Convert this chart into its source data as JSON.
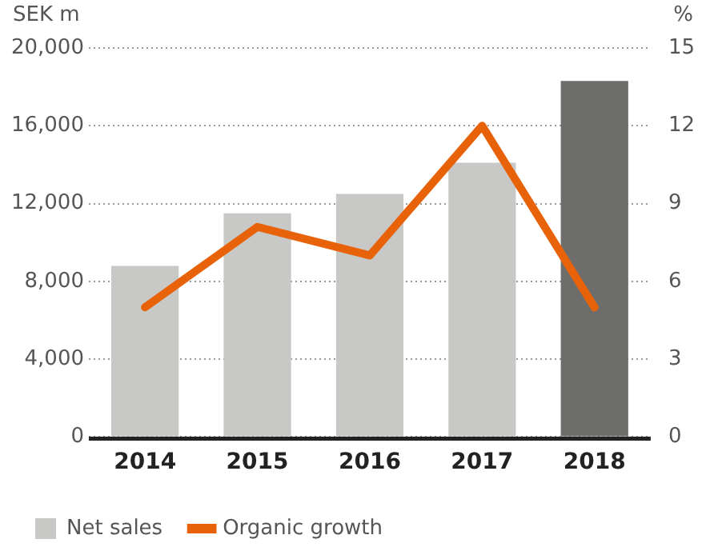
{
  "chart_data": {
    "type": "bar",
    "categories": [
      "2014",
      "2015",
      "2016",
      "2017",
      "2018"
    ],
    "ylabel": "SEK m",
    "y2label": "%",
    "series": [
      {
        "name": "Net sales",
        "color": "#c8c8c7",
        "colors": [
          "#c8c8c7",
          "#c8c8c7",
          "#c8c8c7",
          "#c8c8c7",
          "#6d6d6b"
        ],
        "values": [
          8800,
          11500,
          12500,
          14100,
          18300
        ]
      },
      {
        "name": "Organic growth",
        "type": "line",
        "axis": "y2",
        "color": "#e8620a",
        "values": [
          5.0,
          8.1,
          7.0,
          12.0,
          5.0
        ]
      }
    ],
    "ylim": [
      0,
      20000
    ],
    "yticks": [
      {
        "value": 0,
        "label": "0"
      },
      {
        "value": 4000,
        "label": "4,000"
      },
      {
        "value": 8000,
        "label": "8,000"
      },
      {
        "value": 12000,
        "label": "12,000"
      },
      {
        "value": 16000,
        "label": "16,000"
      },
      {
        "value": 20000,
        "label": "20,000"
      }
    ],
    "y2lim": [
      0,
      15
    ],
    "y2ticks": [
      0,
      3,
      6,
      9,
      12,
      15
    ],
    "grid": "y",
    "legend": "bottom left",
    "marker": "none",
    "line_style": "solid"
  }
}
